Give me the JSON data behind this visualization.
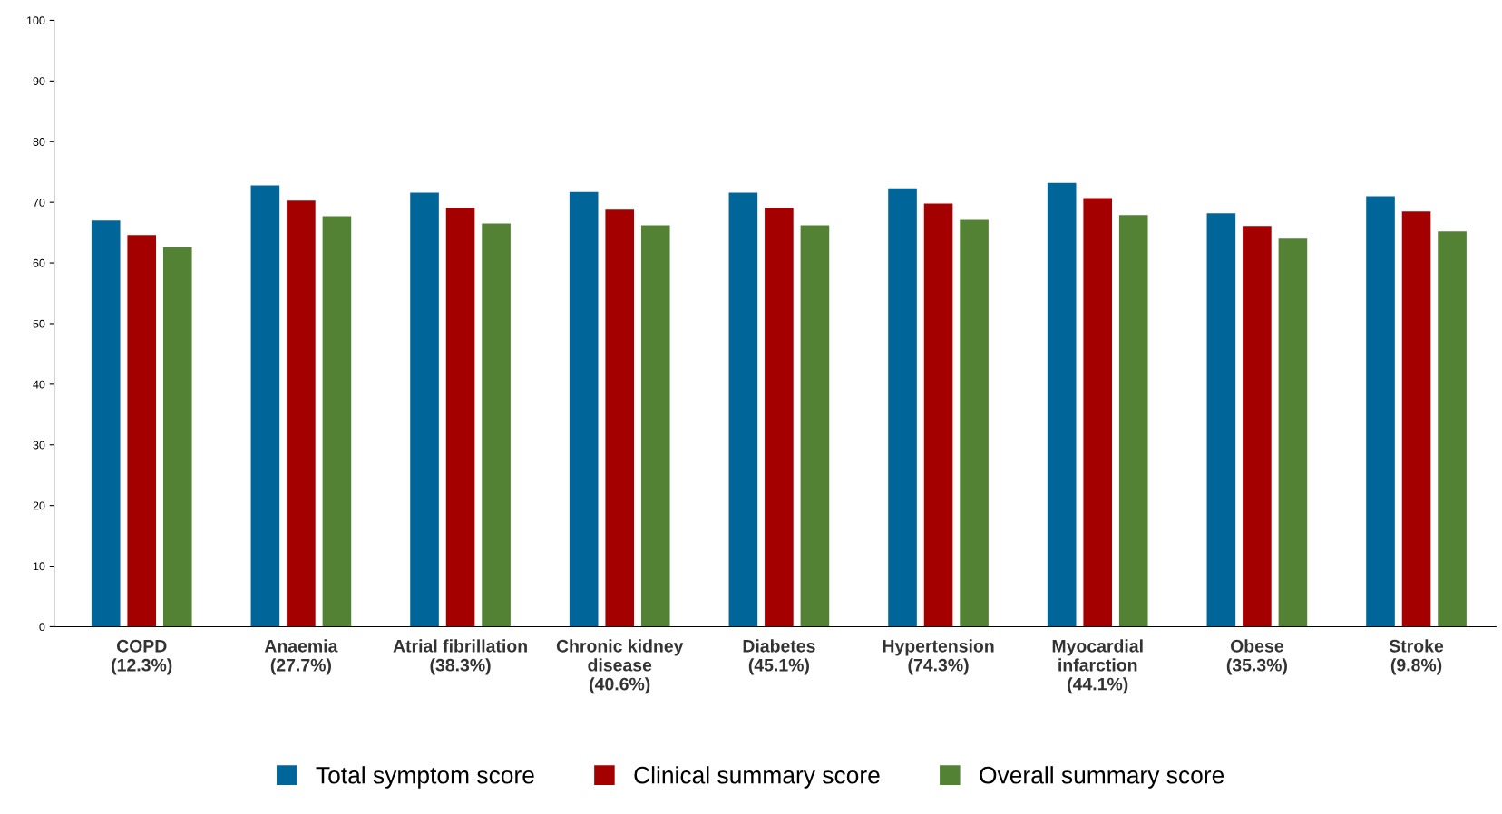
{
  "chart_data": {
    "type": "bar",
    "categories": [
      "COPD\n(12.3%)",
      "Anaemia\n(27.7%)",
      "Atrial fibrillation\n(38.3%)",
      "Chronic kidney\ndisease\n(40.6%)",
      "Diabetes\n(45.1%)",
      "Hypertension\n(74.3%)",
      "Myocardial\ninfarction\n(44.1%)",
      "Obese\n(35.3%)",
      "Stroke\n(9.8%)"
    ],
    "series": [
      {
        "name": "Total symptom score",
        "color": "#006699",
        "values": [
          67.0,
          72.8,
          71.6,
          71.7,
          71.6,
          72.3,
          73.2,
          68.2,
          71.0
        ]
      },
      {
        "name": "Clinical summary score",
        "color": "#a50000",
        "values": [
          64.6,
          70.3,
          69.1,
          68.8,
          69.1,
          69.8,
          70.7,
          66.1,
          68.5
        ]
      },
      {
        "name": "Overall summary score",
        "color": "#548235",
        "values": [
          62.6,
          67.7,
          66.5,
          66.2,
          66.2,
          67.1,
          67.9,
          64.0,
          65.2
        ]
      }
    ],
    "ylim": [
      0,
      100
    ],
    "yticks": [
      0,
      10,
      20,
      30,
      40,
      50,
      60,
      70,
      80,
      90,
      100
    ],
    "grid": false,
    "legend": "bottom"
  }
}
